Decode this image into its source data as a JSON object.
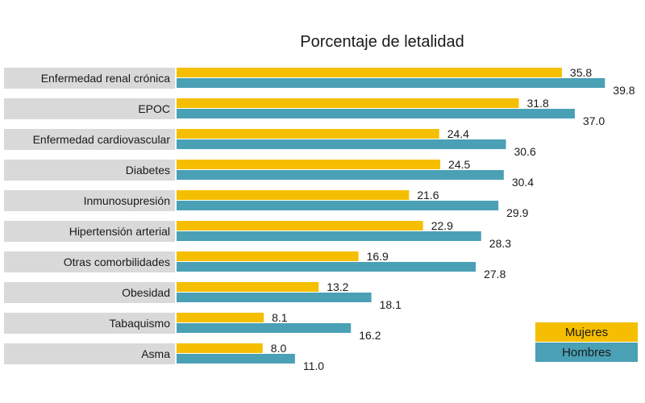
{
  "chart_data": {
    "type": "bar",
    "orientation": "horizontal",
    "title": "Porcentaje de letalidad",
    "categories": [
      "Enfermedad renal crónica",
      "EPOC",
      "Enfermedad cardiovascular",
      "Diabetes",
      "Inmunosupresión",
      "Hipertensión arterial",
      "Otras comorbilidades",
      "Obesidad",
      "Tabaquismo",
      "Asma"
    ],
    "series": [
      {
        "name": "Mujeres",
        "color": "#F5BE00",
        "values": [
          35.8,
          31.8,
          24.4,
          24.5,
          21.6,
          22.9,
          16.9,
          13.2,
          8.1,
          8.0
        ],
        "labels": [
          "35.8",
          "31.8",
          "24.4",
          "24.5",
          "21.6",
          "22.9",
          "16.9",
          "13.2",
          "8.1",
          "8.0"
        ]
      },
      {
        "name": "Hombres",
        "color": "#4AA0B5",
        "values": [
          39.8,
          37.0,
          30.6,
          30.4,
          29.9,
          28.3,
          27.8,
          18.1,
          16.2,
          11.0
        ],
        "labels": [
          "39.8",
          "37.0",
          "30.6",
          "30.4",
          "29.9",
          "28.3",
          "27.8",
          "18.1",
          "16.2",
          "11.0"
        ]
      }
    ],
    "category_label_background": "#D9D9D9",
    "xlim": [
      0,
      41.5
    ],
    "grid": false,
    "legend_position": "bottom-right"
  }
}
